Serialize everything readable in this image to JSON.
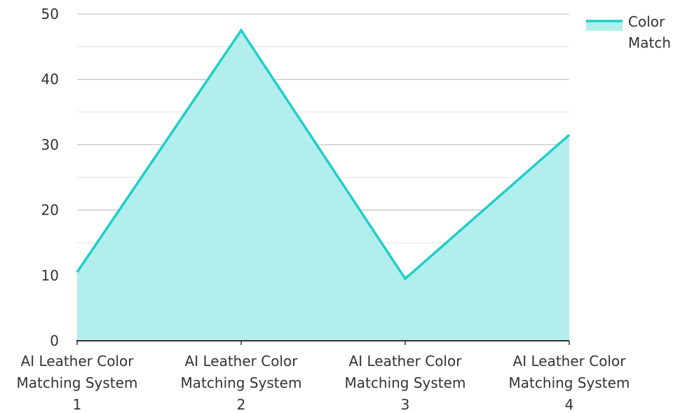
{
  "chart_data": {
    "type": "area",
    "categories": [
      [
        "AI Leather Color",
        "Matching System",
        "1"
      ],
      [
        "AI Leather Color",
        "Matching System",
        "2"
      ],
      [
        "AI Leather Color",
        "Matching System",
        "3"
      ],
      [
        "AI Leather Color",
        "Matching System",
        "4"
      ]
    ],
    "series": [
      {
        "name": [
          "Color",
          "Match"
        ],
        "values": [
          10.5,
          47.5,
          9.5,
          31.5
        ],
        "line_color": "#1ecfc9",
        "fill_color": "#b2eeec"
      }
    ],
    "ylim": [
      0,
      50
    ],
    "y_ticks": [
      "0",
      "10",
      "20",
      "30",
      "40",
      "50"
    ],
    "grid": true,
    "legend_position": "top-right",
    "colors": {
      "major_grid": "#b8b8b8",
      "minor_grid": "#e0e0e0",
      "axis": "#333333"
    }
  }
}
